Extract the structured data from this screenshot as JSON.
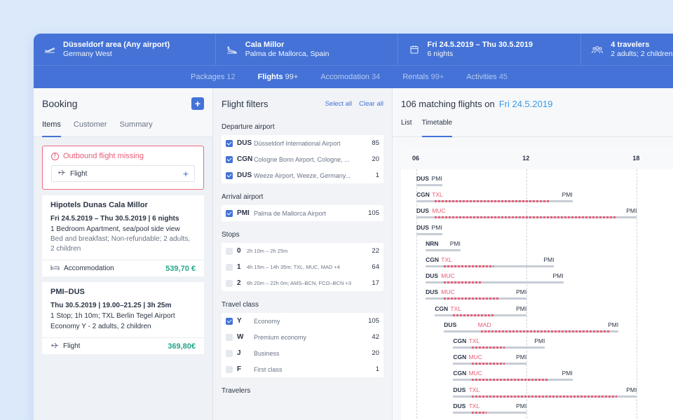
{
  "header": {
    "origin": {
      "title": "Düsseldorf area (Any airport)",
      "subtitle": "Germany West",
      "icon": "plane-takeoff-icon"
    },
    "destination": {
      "title": "Cala Millor",
      "subtitle": "Palma de Mallorca, Spain",
      "icon": "plane-landing-icon"
    },
    "dates": {
      "title": "Fri 24.5.2019 – Thu 30.5.2019",
      "subtitle": "6 nights",
      "icon": "calendar-icon"
    },
    "travelers": {
      "title": "4 travelers",
      "subtitle": "2 adults; 2 children",
      "icon": "users-icon"
    }
  },
  "nav_tabs": [
    {
      "label": "Packages",
      "count": "12",
      "active": false
    },
    {
      "label": "Flights",
      "count": "99+",
      "active": true
    },
    {
      "label": "Accomodation",
      "count": "34",
      "active": false
    },
    {
      "label": "Rentals",
      "count": "99+",
      "active": false
    },
    {
      "label": "Activities",
      "count": "45",
      "active": false
    }
  ],
  "booking": {
    "title": "Booking",
    "add_label": "+",
    "tabs": [
      "Items",
      "Customer",
      "Summary"
    ],
    "warning": {
      "title": "Outbound flight missing",
      "row_label": "Flight",
      "row_add": "+"
    },
    "cards": [
      {
        "title": "Hipotels Dunas Cala Millor",
        "dates": "Fri 24.5.2019 – Thu 30.5.2019 | 6 nights",
        "line1": "1 Bedroom Apartment, sea/pool side view",
        "line2": "Bed and breakfast; Non-refundable; 2 adults, 2 children",
        "type": "Accommodation",
        "price": "539,70 €"
      },
      {
        "title": "PMI–DUS",
        "dates": "Thu 30.5.2019 | 19.00–21.25 | 3h 25m",
        "line1": "1 Stop; 1h 10m; TXL Berlin Tegel Airport",
        "line2": "Economy Y - 2 adults, 2 children",
        "type": "Flight",
        "price": "369,80€"
      }
    ]
  },
  "filters": {
    "title": "Flight filters",
    "select_all": "Select all",
    "clear_all": "Clear all",
    "departure": {
      "label": "Departure airport",
      "items": [
        {
          "code": "DUS",
          "desc": "Düsseldorf International Airport",
          "count": "85",
          "checked": true
        },
        {
          "code": "CGN",
          "desc": "Cologne Bonn Airport, Cologne, ...",
          "count": "20",
          "checked": true
        },
        {
          "code": "DUS",
          "desc": "Weeze Airport, Weeze, Germany...",
          "count": "1",
          "checked": true
        }
      ]
    },
    "arrival": {
      "label": "Arrival airport",
      "items": [
        {
          "code": "PMI",
          "desc": "Palma de Mallorca Airport",
          "count": "105",
          "checked": true
        }
      ]
    },
    "stops": {
      "label": "Stops",
      "items": [
        {
          "code": "0",
          "desc": "2h 10m – 2h 25m",
          "count": "22",
          "checked": false
        },
        {
          "code": "1",
          "desc": "4h 15m – 14h 35m; TXL, MUC, MAD +4",
          "count": "64",
          "checked": false
        },
        {
          "code": "2",
          "desc": "6h 20m – 22h 0m; AMS–BCN, FCO–BCN +3",
          "count": "17",
          "checked": false
        }
      ]
    },
    "travel_class": {
      "label": "Travel class",
      "items": [
        {
          "code": "Y",
          "desc": "Economy",
          "count": "105",
          "checked": true
        },
        {
          "code": "W",
          "desc": "Premium economy",
          "count": "42",
          "checked": false
        },
        {
          "code": "J",
          "desc": "Business",
          "count": "20",
          "checked": false
        },
        {
          "code": "F",
          "desc": "First class",
          "count": "1",
          "checked": false
        }
      ]
    },
    "travelers_label": "Travelers"
  },
  "flights": {
    "heading": "106 matching flights on",
    "date": "Fri 24.5.2019",
    "tabs": [
      "List",
      "Timetable"
    ],
    "axis": {
      "labels": [
        "06",
        "12",
        "18"
      ],
      "start_hour": 6,
      "end_hour": 18
    },
    "rows": [
      {
        "origin": "DUS",
        "stop": "",
        "dest": "PMI",
        "dep": 6.0,
        "arr": 7.4
      },
      {
        "origin": "CGN",
        "stop": "TXL",
        "dest": "PMI",
        "dep": 6.0,
        "arr": 14.5,
        "stop_from": 7.0,
        "stop_to": 13.3
      },
      {
        "origin": "DUS",
        "stop": "MUC",
        "dest": "PMI",
        "dep": 6.0,
        "arr": 18.0,
        "stop_from": 7.0,
        "stop_to": 16.9
      },
      {
        "origin": "DUS",
        "stop": "",
        "dest": "PMI",
        "dep": 6.0,
        "arr": 7.4
      },
      {
        "origin": "NRN",
        "stop": "",
        "dest": "PMI",
        "dep": 6.5,
        "arr": 8.4
      },
      {
        "origin": "CGN",
        "stop": "TXL",
        "dest": "PMI",
        "dep": 6.5,
        "arr": 13.5,
        "stop_from": 7.5,
        "stop_to": 10.2
      },
      {
        "origin": "DUS",
        "stop": "MUC",
        "dest": "PMI",
        "dep": 6.5,
        "arr": 14.0,
        "stop_from": 7.5,
        "stop_to": 9.6
      },
      {
        "origin": "DUS",
        "stop": "MUC",
        "dest": "PMI",
        "dep": 6.5,
        "arr": 12.0,
        "stop_from": 7.5,
        "stop_to": 10.5
      },
      {
        "origin": "CGN",
        "stop": "TXL",
        "dest": "PMI",
        "dep": 7.0,
        "arr": 12.0,
        "stop_from": 8.0,
        "stop_to": 10.2
      },
      {
        "origin": "DUS",
        "stop": "MAD",
        "dest": "PMI",
        "dep": 7.5,
        "arr": 17.0,
        "stop_from": 9.5,
        "stop_to": 16.5
      },
      {
        "origin": "CGN",
        "stop": "TXL",
        "dest": "PMI",
        "dep": 8.0,
        "arr": 13.0,
        "stop_from": 9.0,
        "stop_to": 10.8
      },
      {
        "origin": "CGN",
        "stop": "MUC",
        "dest": "PMI",
        "dep": 8.0,
        "arr": 12.0,
        "stop_from": 9.0,
        "stop_to": 10.8
      },
      {
        "origin": "CGN",
        "stop": "MUC",
        "dest": "PMI",
        "dep": 8.0,
        "arr": 14.5,
        "stop_from": 9.0,
        "stop_to": 13.2
      },
      {
        "origin": "DUS",
        "stop": "TXL",
        "dest": "PMI",
        "dep": 8.0,
        "arr": 18.0,
        "stop_from": 9.0,
        "stop_to": 16.9
      },
      {
        "origin": "DUS",
        "stop": "TXL",
        "dest": "PMI",
        "dep": 8.0,
        "arr": 12.0,
        "stop_from": 9.0,
        "stop_to": 9.8
      }
    ]
  }
}
